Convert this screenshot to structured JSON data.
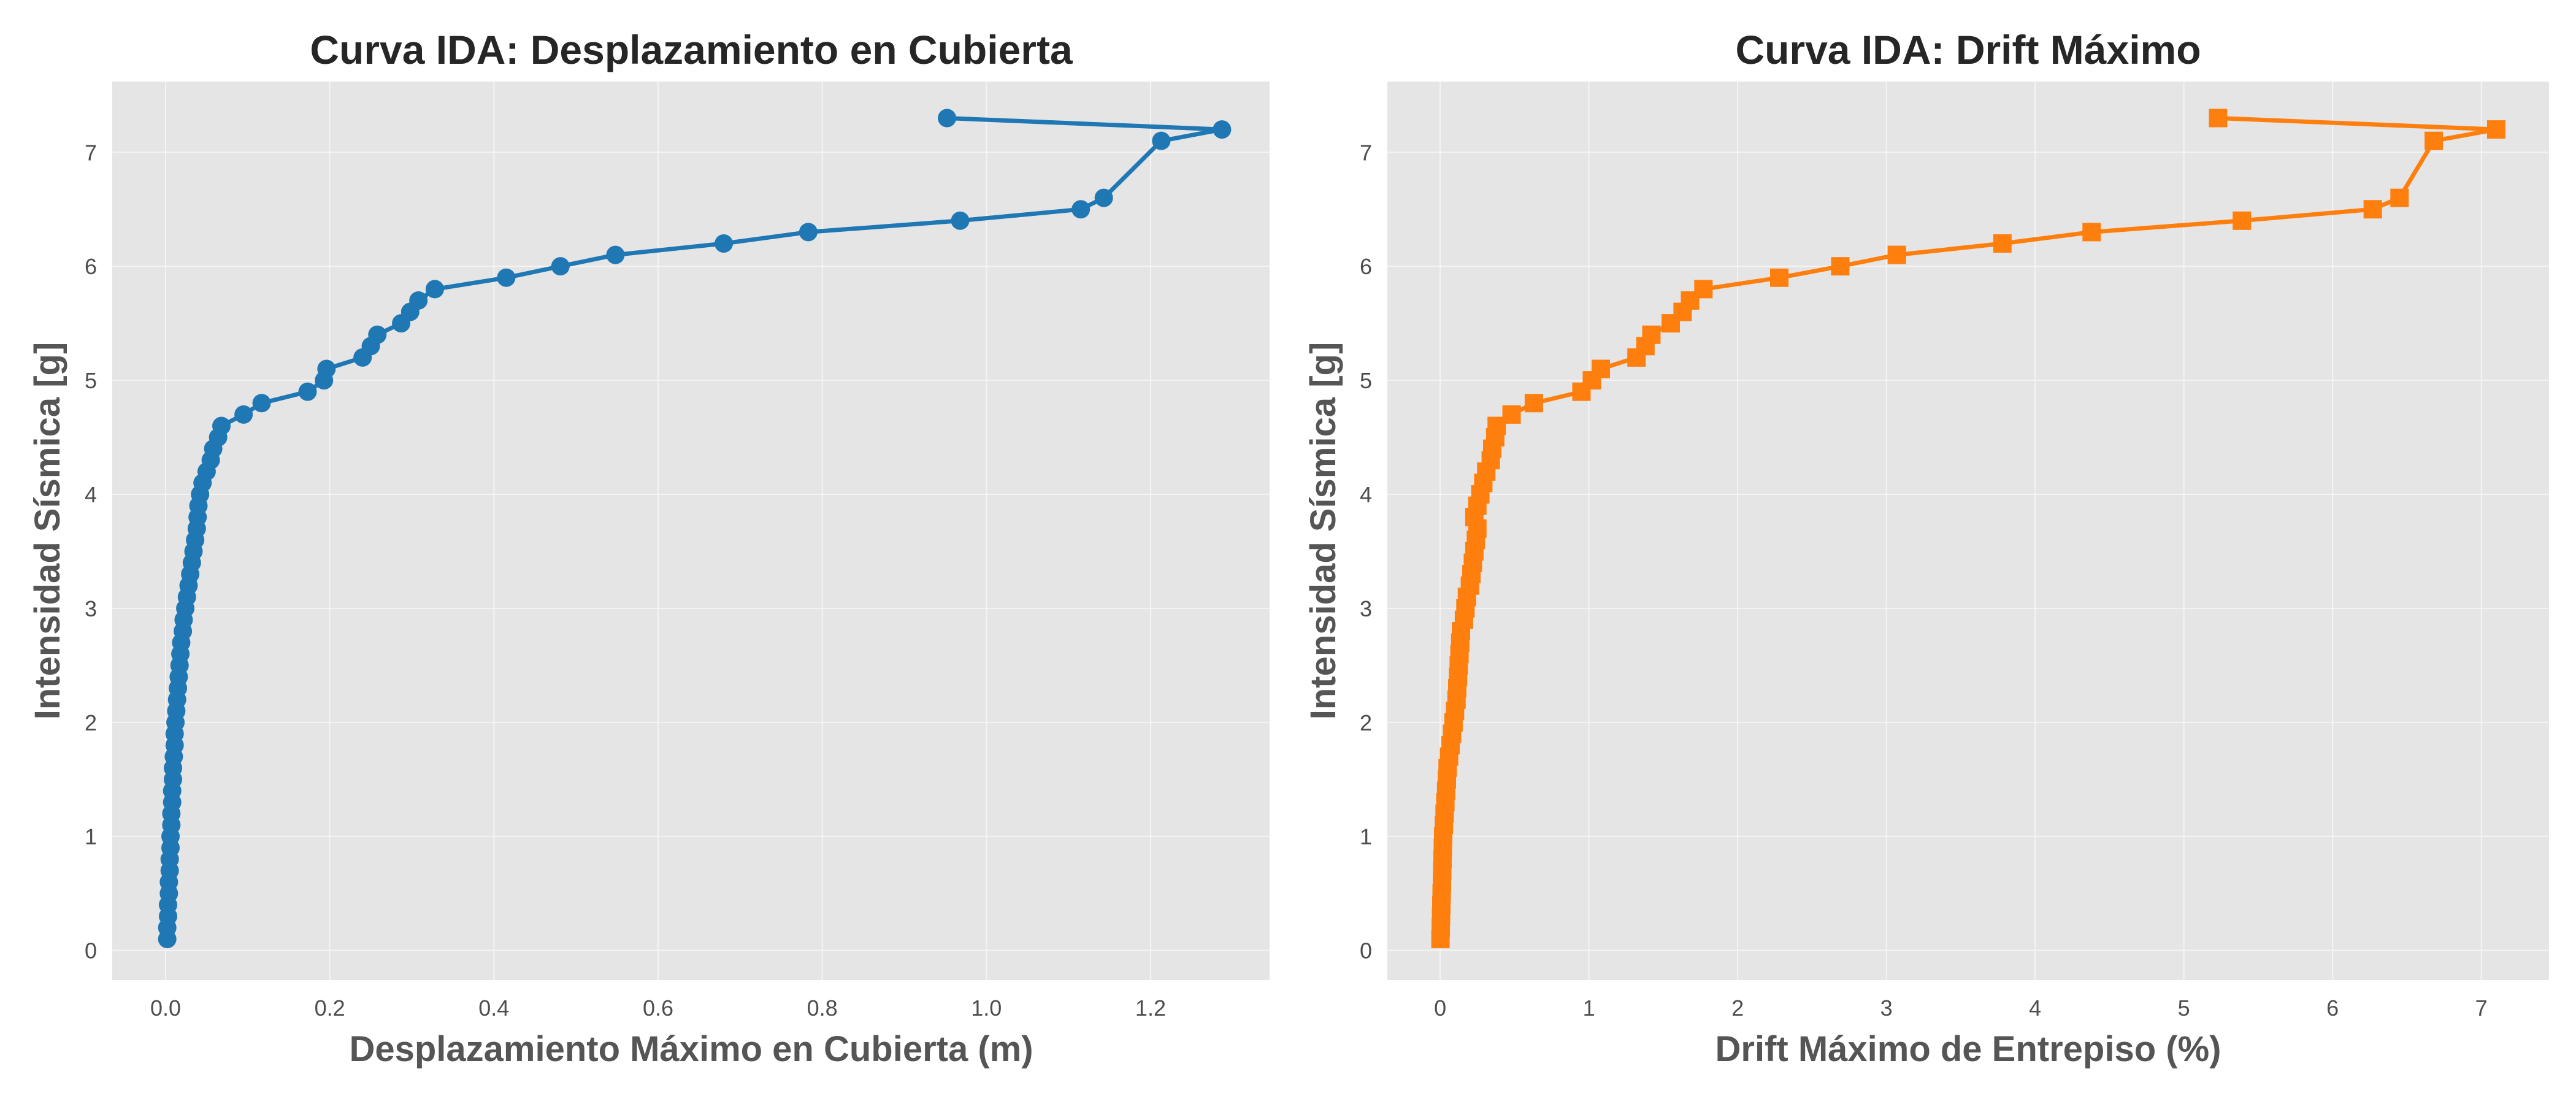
{
  "chart_data": [
    {
      "type": "line",
      "title": "Curva IDA: Desplazamiento en Cubierta",
      "xlabel": "Desplazamiento Máximo en Cubierta (m)",
      "ylabel": "Intensidad Sísmica [g]",
      "xlim": [
        -0.065,
        1.345
      ],
      "ylim": [
        -0.26,
        7.62
      ],
      "xticks": [
        0.0,
        0.2,
        0.4,
        0.6,
        0.8,
        1.0,
        1.2
      ],
      "xtick_labels": [
        "0.0",
        "0.2",
        "0.4",
        "0.6",
        "0.8",
        "1.0",
        "1.2"
      ],
      "yticks": [
        0,
        1,
        2,
        3,
        4,
        5,
        6,
        7
      ],
      "ytick_labels": [
        "0",
        "1",
        "2",
        "3",
        "4",
        "5",
        "6",
        "7"
      ],
      "grid": true,
      "series": [
        {
          "color": "#1f77b4",
          "marker": "circle",
          "points": [
            [
              0.002,
              0.1
            ],
            [
              0.002,
              0.2
            ],
            [
              0.003,
              0.3
            ],
            [
              0.003,
              0.4
            ],
            [
              0.004,
              0.5
            ],
            [
              0.004,
              0.6
            ],
            [
              0.005,
              0.7
            ],
            [
              0.005,
              0.8
            ],
            [
              0.006,
              0.9
            ],
            [
              0.006,
              1.0
            ],
            [
              0.007,
              1.1
            ],
            [
              0.007,
              1.2
            ],
            [
              0.008,
              1.3
            ],
            [
              0.008,
              1.4
            ],
            [
              0.009,
              1.5
            ],
            [
              0.009,
              1.6
            ],
            [
              0.01,
              1.7
            ],
            [
              0.011,
              1.8
            ],
            [
              0.011,
              1.9
            ],
            [
              0.012,
              2.0
            ],
            [
              0.013,
              2.1
            ],
            [
              0.014,
              2.2
            ],
            [
              0.015,
              2.3
            ],
            [
              0.016,
              2.4
            ],
            [
              0.017,
              2.5
            ],
            [
              0.018,
              2.6
            ],
            [
              0.019,
              2.7
            ],
            [
              0.021,
              2.8
            ],
            [
              0.022,
              2.9
            ],
            [
              0.024,
              3.0
            ],
            [
              0.026,
              3.1
            ],
            [
              0.028,
              3.2
            ],
            [
              0.03,
              3.3
            ],
            [
              0.032,
              3.4
            ],
            [
              0.034,
              3.5
            ],
            [
              0.036,
              3.6
            ],
            [
              0.038,
              3.7
            ],
            [
              0.039,
              3.8
            ],
            [
              0.04,
              3.9
            ],
            [
              0.042,
              4.0
            ],
            [
              0.045,
              4.1
            ],
            [
              0.05,
              4.2
            ],
            [
              0.055,
              4.3
            ],
            [
              0.058,
              4.4
            ],
            [
              0.064,
              4.5
            ],
            [
              0.068,
              4.6
            ],
            [
              0.095,
              4.7
            ],
            [
              0.117,
              4.8
            ],
            [
              0.173,
              4.9
            ],
            [
              0.193,
              5.0
            ],
            [
              0.196,
              5.1
            ],
            [
              0.24,
              5.2
            ],
            [
              0.25,
              5.3
            ],
            [
              0.258,
              5.4
            ],
            [
              0.287,
              5.5
            ],
            [
              0.298,
              5.6
            ],
            [
              0.308,
              5.7
            ],
            [
              0.328,
              5.8
            ],
            [
              0.415,
              5.9
            ],
            [
              0.481,
              6.0
            ],
            [
              0.548,
              6.1
            ],
            [
              0.68,
              6.2
            ],
            [
              0.783,
              6.3
            ],
            [
              0.968,
              6.4
            ],
            [
              1.115,
              6.5
            ],
            [
              1.143,
              6.6
            ],
            [
              1.213,
              7.1
            ],
            [
              1.287,
              7.2
            ],
            [
              0.952,
              7.3
            ]
          ]
        }
      ]
    },
    {
      "type": "line",
      "title": "Curva IDA: Drift Máximo",
      "xlabel": "Drift Máximo de Entrepiso (%)",
      "ylabel": "Intensidad Sísmica [g]",
      "xlim": [
        -0.355,
        7.455
      ],
      "ylim": [
        -0.26,
        7.62
      ],
      "xticks": [
        0,
        1,
        2,
        3,
        4,
        5,
        6,
        7
      ],
      "xtick_labels": [
        "0",
        "1",
        "2",
        "3",
        "4",
        "5",
        "6",
        "7"
      ],
      "yticks": [
        0,
        1,
        2,
        3,
        4,
        5,
        6,
        7
      ],
      "ytick_labels": [
        "0",
        "1",
        "2",
        "3",
        "4",
        "5",
        "6",
        "7"
      ],
      "grid": true,
      "series": [
        {
          "color": "#ff7f0e",
          "marker": "square",
          "points": [
            [
              0.002,
              0.1
            ],
            [
              0.004,
              0.2
            ],
            [
              0.006,
              0.3
            ],
            [
              0.008,
              0.4
            ],
            [
              0.01,
              0.5
            ],
            [
              0.012,
              0.6
            ],
            [
              0.014,
              0.7
            ],
            [
              0.016,
              0.8
            ],
            [
              0.018,
              0.9
            ],
            [
              0.02,
              1.0
            ],
            [
              0.025,
              1.1
            ],
            [
              0.03,
              1.2
            ],
            [
              0.035,
              1.3
            ],
            [
              0.04,
              1.4
            ],
            [
              0.045,
              1.5
            ],
            [
              0.05,
              1.6
            ],
            [
              0.06,
              1.7
            ],
            [
              0.07,
              1.8
            ],
            [
              0.08,
              1.9
            ],
            [
              0.09,
              2.0
            ],
            [
              0.1,
              2.1
            ],
            [
              0.11,
              2.2
            ],
            [
              0.115,
              2.3
            ],
            [
              0.12,
              2.4
            ],
            [
              0.125,
              2.5
            ],
            [
              0.13,
              2.6
            ],
            [
              0.135,
              2.7
            ],
            [
              0.14,
              2.8
            ],
            [
              0.16,
              2.9
            ],
            [
              0.17,
              3.0
            ],
            [
              0.18,
              3.1
            ],
            [
              0.2,
              3.2
            ],
            [
              0.21,
              3.3
            ],
            [
              0.22,
              3.4
            ],
            [
              0.23,
              3.5
            ],
            [
              0.24,
              3.6
            ],
            [
              0.25,
              3.7
            ],
            [
              0.23,
              3.8
            ],
            [
              0.25,
              3.9
            ],
            [
              0.27,
              4.0
            ],
            [
              0.29,
              4.1
            ],
            [
              0.31,
              4.2
            ],
            [
              0.34,
              4.3
            ],
            [
              0.35,
              4.4
            ],
            [
              0.37,
              4.5
            ],
            [
              0.38,
              4.6
            ],
            [
              0.48,
              4.7
            ],
            [
              0.63,
              4.8
            ],
            [
              0.95,
              4.9
            ],
            [
              1.02,
              5.0
            ],
            [
              1.08,
              5.1
            ],
            [
              1.32,
              5.2
            ],
            [
              1.38,
              5.3
            ],
            [
              1.42,
              5.4
            ],
            [
              1.55,
              5.5
            ],
            [
              1.63,
              5.6
            ],
            [
              1.68,
              5.7
            ],
            [
              1.77,
              5.8
            ],
            [
              2.28,
              5.9
            ],
            [
              2.69,
              6.0
            ],
            [
              3.07,
              6.1
            ],
            [
              3.78,
              6.2
            ],
            [
              4.38,
              6.3
            ],
            [
              5.39,
              6.4
            ],
            [
              6.27,
              6.5
            ],
            [
              6.45,
              6.6
            ],
            [
              6.68,
              7.1
            ],
            [
              7.1,
              7.2
            ],
            [
              5.23,
              7.3
            ]
          ]
        }
      ]
    }
  ]
}
